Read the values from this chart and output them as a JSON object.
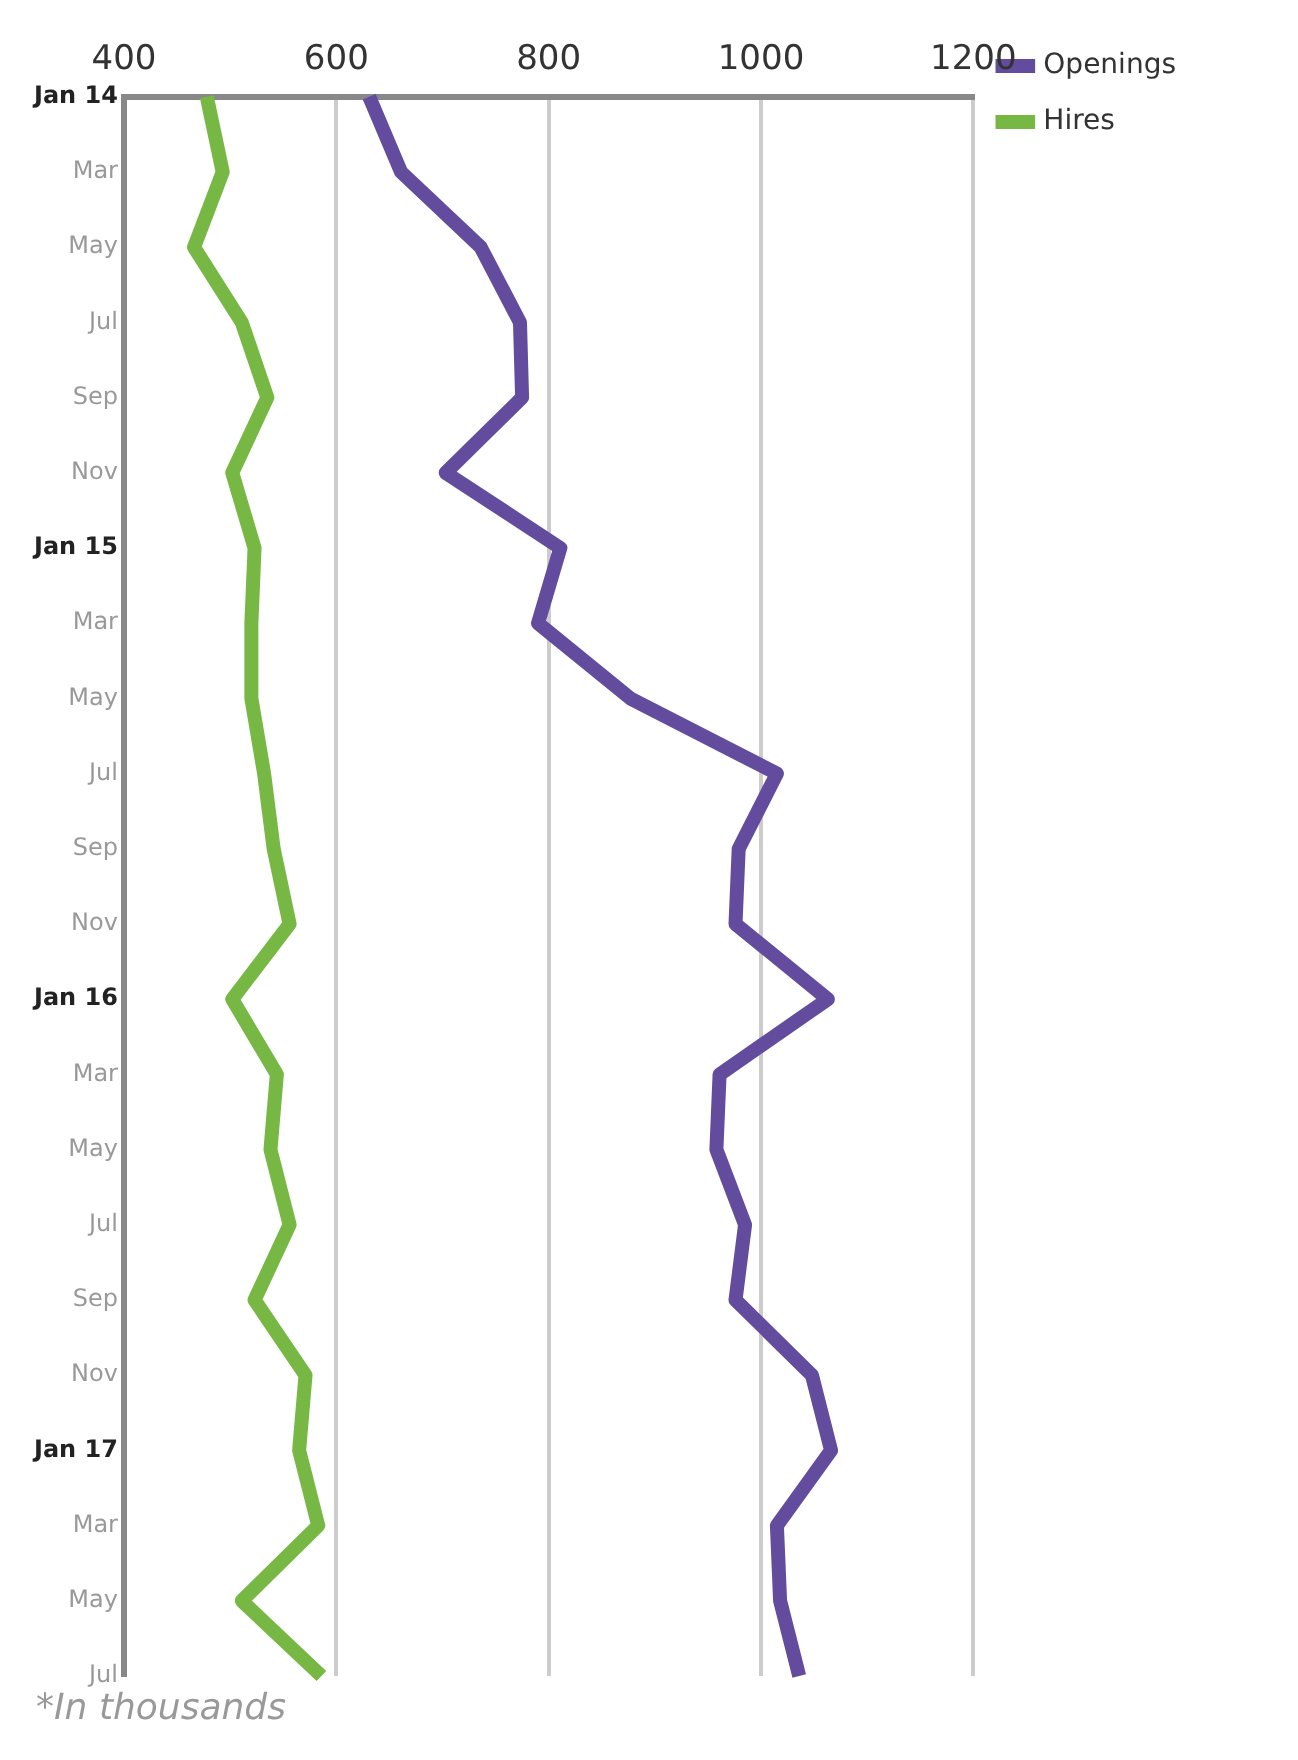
{
  "chart_data": {
    "type": "line",
    "annotations": [
      "*In thousands"
    ],
    "categories": [
      "Jan 14",
      "Mar",
      "May",
      "Jul",
      "Sep",
      "Nov",
      "Jan 15",
      "Mar",
      "May",
      "Jul",
      "Sep",
      "Nov",
      "Jan 16",
      "Mar",
      "May",
      "Jul",
      "Sep",
      "Nov",
      "Jan 17",
      "Mar",
      "May",
      "Jul"
    ],
    "series": [
      {
        "name": "Openings",
        "color": "#634c9e",
        "values": [
          631,
          661,
          736,
          773,
          775,
          703,
          811,
          790,
          877,
          1015,
          979,
          976,
          1063,
          961,
          958,
          985,
          976,
          1048,
          1066,
          1015,
          1018,
          1036
        ]
      },
      {
        "name": "Hires",
        "color": "#76b843",
        "values": [
          478,
          493,
          466,
          511,
          535,
          502,
          523,
          520,
          520,
          532,
          541,
          556,
          502,
          544,
          538,
          556,
          523,
          571,
          565,
          583,
          511,
          586
        ]
      }
    ],
    "xlim": [
      400,
      1200
    ],
    "xticks": [
      400,
      600,
      800,
      1000,
      1200
    ],
    "orientation": "horizontal",
    "grid": "x",
    "legend": "right",
    "marker": "none",
    "line_style": "solid"
  }
}
